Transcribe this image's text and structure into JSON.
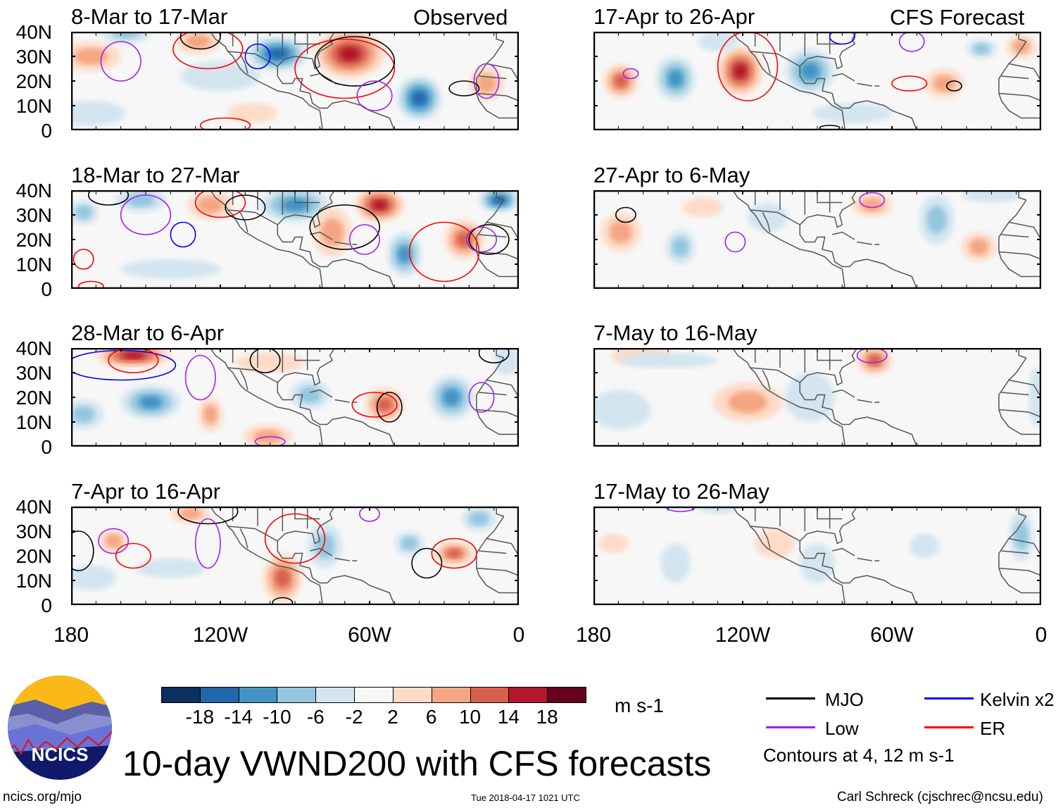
{
  "title": "10-day VWND200 with CFS forecasts",
  "site": "ncics.org/mjo",
  "timestamp": "Tue 2018-04-17 1021 UTC",
  "author": "Carl Schreck (cjschrec@ncsu.edu)",
  "logo_text": "NCICS",
  "column_labels": {
    "observed": "Observed",
    "forecast": "CFS Forecast"
  },
  "y_ticks": [
    "40N",
    "30N",
    "20N",
    "10N",
    "0"
  ],
  "x_ticks": [
    "180",
    "120W",
    "60W",
    "0"
  ],
  "colorbar": {
    "units": "m s-1",
    "labels": [
      "-18",
      "-14",
      "-10",
      "-6",
      "-2",
      "2",
      "6",
      "10",
      "14",
      "18"
    ],
    "colors": [
      "#0b305e",
      "#2267ad",
      "#4394c4",
      "#93c6de",
      "#d2e5f0",
      "#f7f7f7",
      "#fddbc7",
      "#f4a582",
      "#d6604d",
      "#b2182b",
      "#67001f"
    ]
  },
  "legend": {
    "items": [
      {
        "label": "MJO",
        "color": "#000000"
      },
      {
        "label": "Kelvin x2",
        "color": "#0000ff"
      },
      {
        "label": "Low",
        "color": "#a020f0"
      },
      {
        "label": "ER",
        "color": "#ff0000"
      }
    ],
    "note": "Contours at 4, 12 m s-1"
  },
  "chart_data": {
    "type": "heatmap",
    "variable": "VWND200 anomaly (m s-1)",
    "lon_range_W": [
      180,
      0
    ],
    "lat_range_N": [
      0,
      40
    ],
    "panels": [
      {
        "title": "8-Mar to 17-Mar",
        "kind": "observed",
        "anomalies": [
          [
            172,
            30,
            12,
            6,
            8
          ],
          [
            158,
            40,
            10,
            5,
            -8
          ],
          [
            129,
            36,
            9,
            5,
            6
          ],
          [
            97,
            31,
            12,
            7,
            -16
          ],
          [
            68,
            31,
            14,
            10,
            16
          ],
          [
            40,
            13,
            9,
            9,
            -16
          ],
          [
            13,
            19,
            7,
            7,
            8
          ],
          [
            172,
            7,
            14,
            5,
            -4
          ],
          [
            107,
            7,
            10,
            4,
            4
          ],
          [
            120,
            22,
            16,
            6,
            -2
          ]
        ],
        "contours": [
          [
            "Low",
            160,
            28,
            8,
            8
          ],
          [
            "ER",
            125,
            33,
            14,
            8
          ],
          [
            "MJO",
            128,
            38,
            8,
            5
          ],
          [
            "Kelvin",
            105,
            30,
            5,
            5
          ],
          [
            "ER",
            70,
            25,
            20,
            12
          ],
          [
            "MJO",
            66,
            28,
            16,
            10
          ],
          [
            "Low",
            58,
            14,
            7,
            6
          ],
          [
            "MJO",
            22,
            17,
            6,
            3
          ],
          [
            "Low",
            13,
            20,
            5,
            7
          ],
          [
            "ER",
            118,
            2,
            10,
            3
          ]
        ]
      },
      {
        "title": "18-Mar to 27-Mar",
        "kind": "observed",
        "anomalies": [
          [
            90,
            34,
            14,
            7,
            -10
          ],
          [
            124,
            34,
            9,
            6,
            8
          ],
          [
            56,
            34,
            10,
            7,
            14
          ],
          [
            46,
            14,
            7,
            9,
            -10
          ],
          [
            22,
            20,
            8,
            8,
            10
          ],
          [
            8,
            36,
            8,
            5,
            -14
          ],
          [
            152,
            36,
            10,
            5,
            -6
          ],
          [
            175,
            31,
            6,
            5,
            -6
          ],
          [
            75,
            23,
            8,
            10,
            6
          ],
          [
            140,
            8,
            20,
            4,
            -2
          ]
        ],
        "contours": [
          [
            "MJO",
            165,
            38,
            8,
            4
          ],
          [
            "Low",
            150,
            30,
            10,
            8
          ],
          [
            "Kelvin",
            135,
            22,
            5,
            5
          ],
          [
            "ER",
            120,
            35,
            10,
            6
          ],
          [
            "MJO",
            110,
            33,
            8,
            5
          ],
          [
            "MJO",
            70,
            25,
            14,
            9
          ],
          [
            "Low",
            62,
            20,
            6,
            6
          ],
          [
            "ER",
            30,
            15,
            14,
            12
          ],
          [
            "MJO",
            12,
            20,
            8,
            6
          ],
          [
            "Low",
            15,
            20,
            6,
            5
          ],
          [
            "ER",
            175,
            12,
            4,
            4
          ],
          [
            "ER",
            172,
            1,
            5,
            2
          ]
        ]
      },
      {
        "title": "28-Mar to 6-Apr",
        "kind": "observed",
        "anomalies": [
          [
            155,
            37,
            15,
            5,
            16
          ],
          [
            148,
            18,
            12,
            7,
            -10
          ],
          [
            124,
            13,
            5,
            7,
            6
          ],
          [
            101,
            4,
            10,
            5,
            8
          ],
          [
            84,
            21,
            8,
            6,
            -6
          ],
          [
            54,
            17,
            8,
            7,
            12
          ],
          [
            27,
            20,
            9,
            9,
            -12
          ],
          [
            5,
            35,
            5,
            6,
            -4
          ],
          [
            175,
            13,
            8,
            6,
            -6
          ],
          [
            100,
            34,
            14,
            4,
            4
          ]
        ],
        "contours": [
          [
            "Kelvin",
            160,
            33,
            22,
            6
          ],
          [
            "ER",
            155,
            35,
            10,
            5
          ],
          [
            "Low",
            128,
            28,
            6,
            9
          ],
          [
            "MJO",
            102,
            35,
            6,
            5
          ],
          [
            "ER",
            58,
            17,
            9,
            5
          ],
          [
            "MJO",
            52,
            16,
            5,
            6
          ],
          [
            "Low",
            15,
            20,
            5,
            6
          ],
          [
            "MJO",
            10,
            38,
            6,
            4
          ],
          [
            "Low",
            100,
            2,
            6,
            2
          ]
        ]
      },
      {
        "title": "7-Apr to 16-Apr",
        "kind": "observed",
        "anomalies": [
          [
            132,
            37,
            8,
            4,
            8
          ],
          [
            163,
            26,
            6,
            5,
            6
          ],
          [
            95,
            11,
            8,
            10,
            12
          ],
          [
            78,
            24,
            7,
            9,
            -6
          ],
          [
            44,
            25,
            6,
            5,
            -6
          ],
          [
            26,
            21,
            8,
            5,
            10
          ],
          [
            16,
            35,
            7,
            5,
            -8
          ],
          [
            172,
            11,
            10,
            5,
            -4
          ],
          [
            140,
            15,
            14,
            4,
            -2
          ]
        ],
        "contours": [
          [
            "MJO",
            177,
            22,
            6,
            8
          ],
          [
            "Low",
            163,
            26,
            6,
            5
          ],
          [
            "ER",
            155,
            20,
            7,
            5
          ],
          [
            "MJO",
            125,
            38,
            12,
            5
          ],
          [
            "Low",
            125,
            25,
            5,
            10
          ],
          [
            "ER",
            90,
            27,
            12,
            10
          ],
          [
            "MJO",
            37,
            17,
            6,
            6
          ],
          [
            "ER",
            26,
            21,
            9,
            6
          ],
          [
            "Low",
            60,
            37,
            4,
            3
          ],
          [
            "MJO",
            95,
            1,
            4,
            2
          ]
        ]
      },
      {
        "title": "17-Apr to 26-Apr",
        "kind": "forecast",
        "anomalies": [
          [
            169,
            20,
            7,
            7,
            12
          ],
          [
            147,
            21,
            8,
            9,
            -10
          ],
          [
            121,
            24,
            9,
            10,
            16
          ],
          [
            93,
            24,
            10,
            9,
            -12
          ],
          [
            39,
            19,
            8,
            6,
            8
          ],
          [
            24,
            33,
            6,
            4,
            -6
          ],
          [
            8,
            34,
            6,
            5,
            6
          ],
          [
            76,
            7,
            16,
            4,
            -4
          ],
          [
            130,
            36,
            8,
            4,
            -4
          ]
        ],
        "contours": [
          [
            "Low",
            165,
            23,
            3,
            2
          ],
          [
            "ER",
            118,
            26,
            12,
            14
          ],
          [
            "Kelvin",
            80,
            38,
            5,
            3
          ],
          [
            "Low",
            52,
            36,
            5,
            4
          ],
          [
            "ER",
            53,
            19,
            7,
            3
          ],
          [
            "MJO",
            35,
            18,
            3,
            2
          ],
          [
            "MJO",
            85,
            1,
            4,
            1
          ]
        ]
      },
      {
        "title": "27-Apr to 6-May",
        "kind": "forecast",
        "anomalies": [
          [
            169,
            23,
            8,
            8,
            8
          ],
          [
            145,
            17,
            6,
            7,
            -6
          ],
          [
            136,
            33,
            8,
            4,
            4
          ],
          [
            68,
            34,
            8,
            5,
            6
          ],
          [
            42,
            28,
            7,
            10,
            -8
          ],
          [
            25,
            17,
            7,
            6,
            8
          ],
          [
            110,
            29,
            8,
            6,
            -4
          ],
          [
            20,
            38,
            12,
            3,
            -2
          ]
        ],
        "contours": [
          [
            "MJO",
            167,
            30,
            4,
            3
          ],
          [
            "Low",
            123,
            19,
            4,
            4
          ],
          [
            "Low",
            68,
            36,
            5,
            3
          ]
        ]
      },
      {
        "title": "7-May to 16-May",
        "kind": "forecast",
        "anomalies": [
          [
            161,
            37,
            12,
            4,
            4
          ],
          [
            118,
            18,
            14,
            8,
            6
          ],
          [
            67,
            35,
            7,
            6,
            10
          ],
          [
            169,
            15,
            12,
            8,
            -4
          ],
          [
            93,
            20,
            10,
            10,
            -4
          ],
          [
            2,
            20,
            3,
            12,
            -4
          ],
          [
            150,
            35,
            20,
            3,
            -2
          ]
        ],
        "contours": [
          [
            "Low",
            68,
            37,
            6,
            3
          ]
        ]
      },
      {
        "title": "17-May to 26-May",
        "kind": "forecast",
        "anomalies": [
          [
            172,
            25,
            6,
            4,
            4
          ],
          [
            147,
            17,
            6,
            8,
            -4
          ],
          [
            107,
            25,
            8,
            6,
            4
          ],
          [
            90,
            17,
            7,
            8,
            -4
          ],
          [
            47,
            24,
            6,
            5,
            -4
          ],
          [
            8,
            28,
            5,
            10,
            -8
          ],
          [
            130,
            40,
            8,
            3,
            -4
          ]
        ],
        "contours": [
          [
            "Low",
            145,
            40,
            6,
            2
          ]
        ]
      }
    ]
  }
}
